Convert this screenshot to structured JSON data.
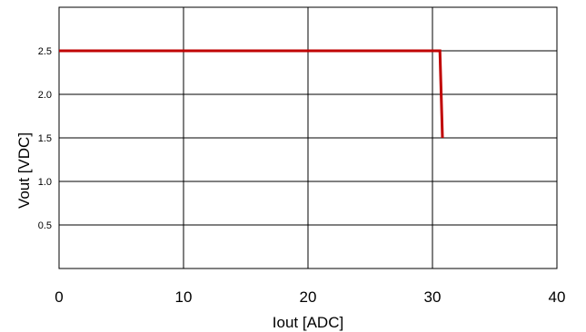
{
  "chart_data": {
    "type": "line",
    "title": "",
    "xlabel": "Iout [ADC]",
    "ylabel": "Vout [VDC]",
    "xlim": [
      0,
      40
    ],
    "ylim": [
      0,
      3.0
    ],
    "xticks": [
      "0",
      "10",
      "20",
      "30",
      "40"
    ],
    "yticks": [
      "0.5",
      "1.0",
      "1.5",
      "2.0",
      "2.5"
    ],
    "grid": true,
    "legend": "none",
    "series": [
      {
        "color": "#c00000",
        "x": [
          0,
          30.6,
          30.8
        ],
        "y": [
          2.5,
          2.5,
          1.5
        ]
      }
    ]
  }
}
